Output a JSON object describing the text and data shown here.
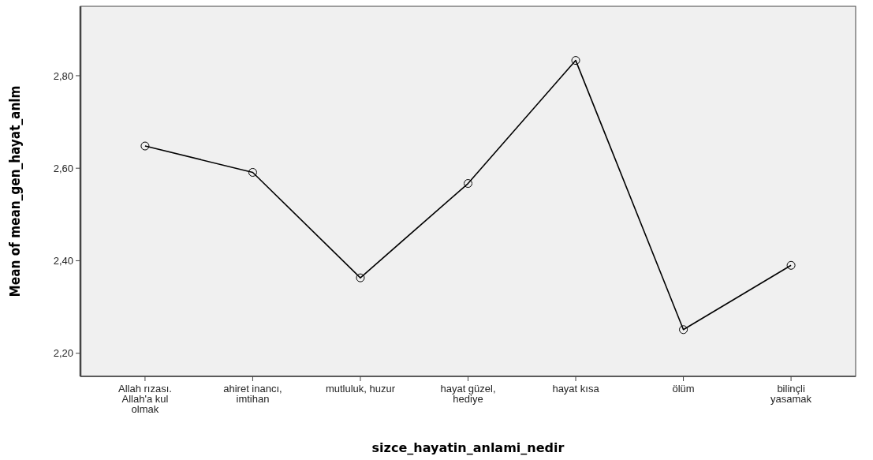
{
  "chart_data": {
    "type": "line",
    "xlabel": "sizce_hayatin_anlami_nedir",
    "ylabel": "Mean of mean_gen_hayat_anlm",
    "categories": [
      "Allah rızası. Allah'a kul olmak",
      "ahiret inancı, imtihan",
      "mutluluk, huzur",
      "hayat güzel, hediye",
      "hayat kısa",
      "ölüm",
      "bilinçli yasamak"
    ],
    "series": [
      {
        "color": "#000000",
        "values": [
          2.648,
          2.591,
          2.363,
          2.567,
          2.833,
          2.251,
          2.39
        ]
      }
    ],
    "ylim": [
      2.15,
      2.95
    ],
    "yticks": [
      {
        "value": 2.2,
        "label": "2,20"
      },
      {
        "value": 2.4,
        "label": "2,40"
      },
      {
        "value": 2.6,
        "label": "2,60"
      },
      {
        "value": 2.8,
        "label": "2,80"
      }
    ],
    "marker": "circle",
    "line_style": "solid",
    "grid": false
  }
}
